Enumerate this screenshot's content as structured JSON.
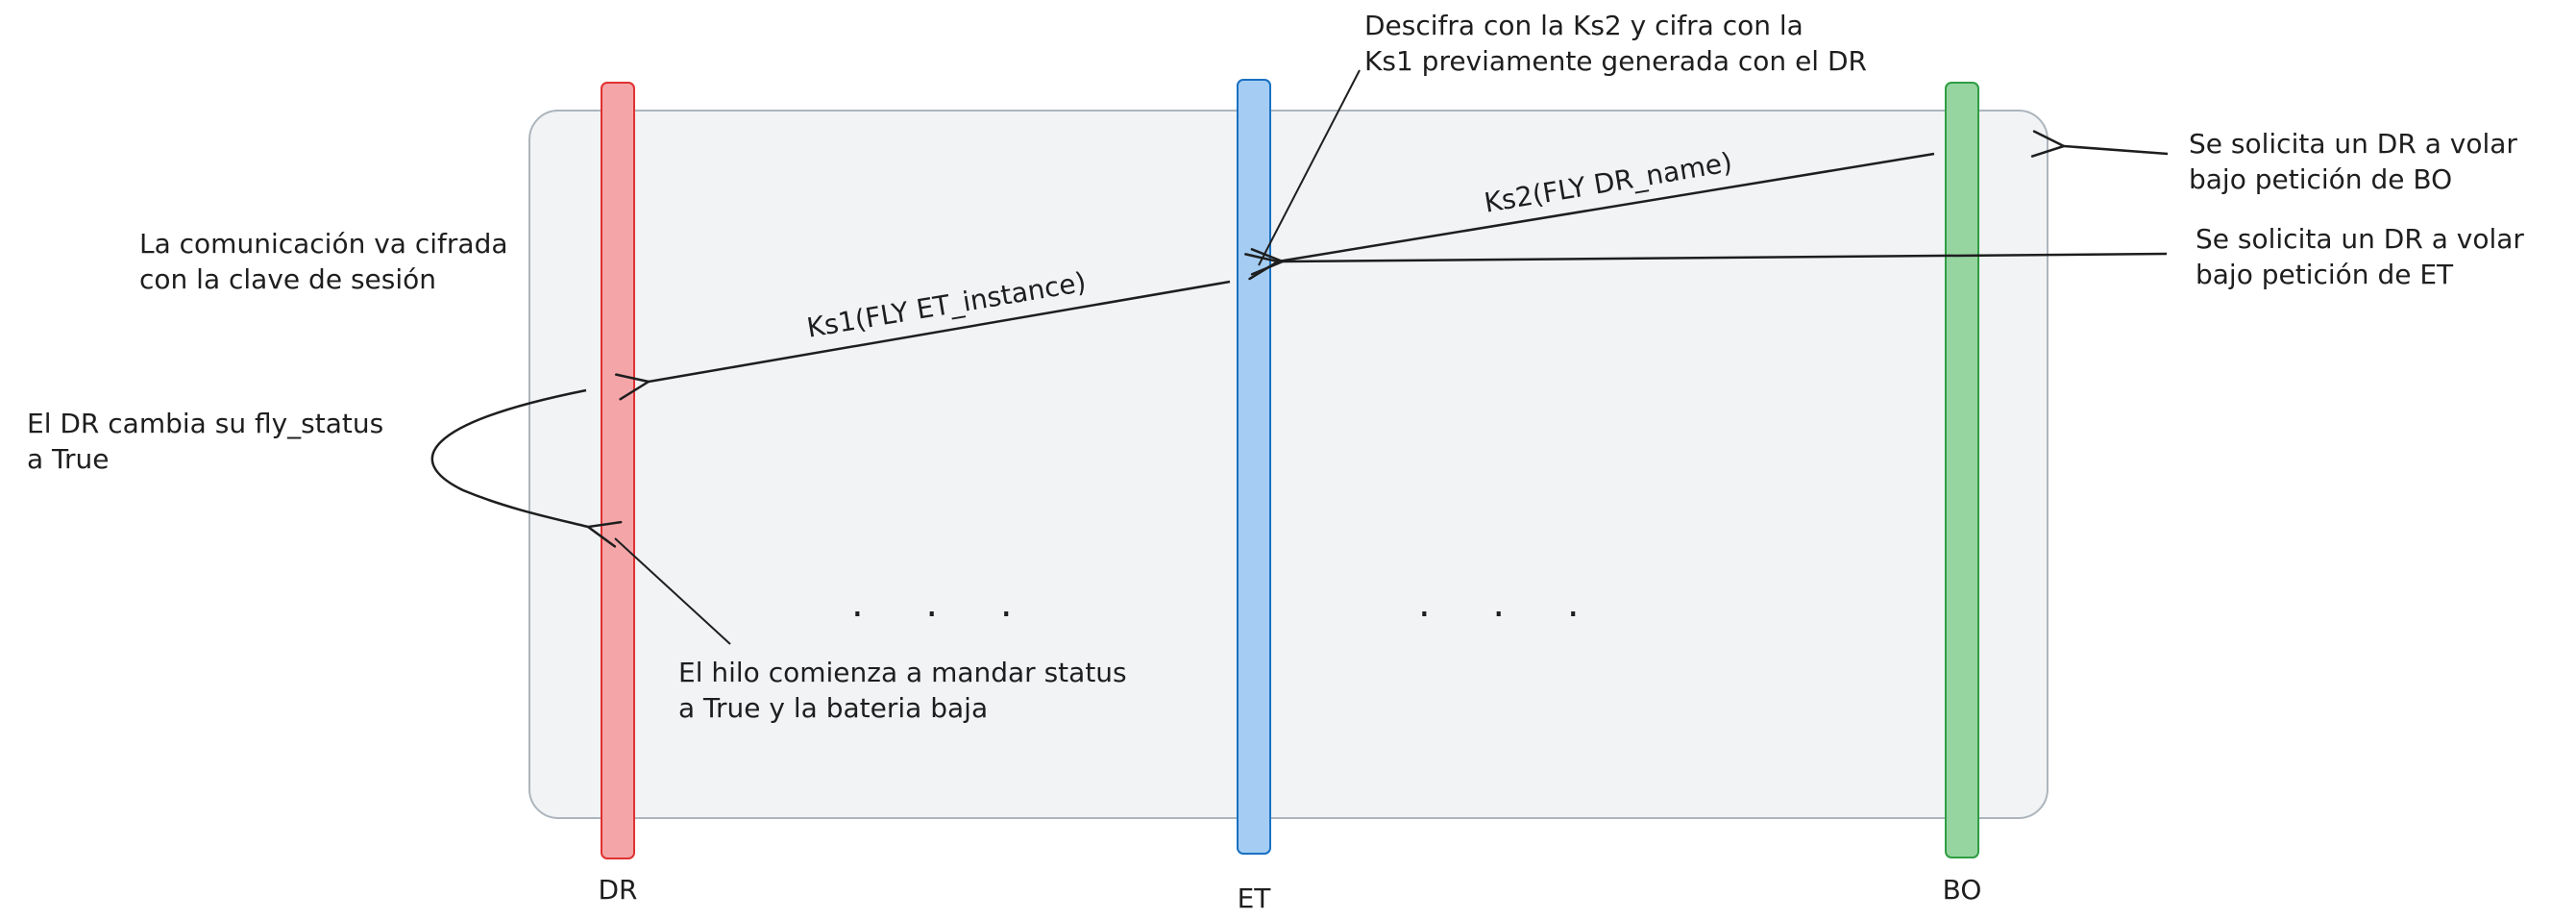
{
  "lanes": [
    {
      "id": "dr",
      "label": "DR",
      "color": "#f4a5a8",
      "stroke": "#e03131"
    },
    {
      "id": "et",
      "label": "ET",
      "color": "#a5cdf3",
      "stroke": "#1971c2"
    },
    {
      "id": "bo",
      "label": "BO",
      "color": "#96d5a0",
      "stroke": "#2f9e44"
    }
  ],
  "messages": {
    "ks2": "Ks2(FLY DR_name)",
    "ks1": "Ks1(FLY ET_instance)"
  },
  "notes": {
    "descifra": [
      "Descifra con la Ks2 y cifra con la",
      "Ks1 previamente generada con el DR"
    ],
    "bo_request": [
      "Se solicita un DR a volar",
      "bajo petición de BO"
    ],
    "et_request": [
      "Se solicita un DR a volar",
      "bajo petición de ET"
    ],
    "comunicacion": [
      "La comunicación va cifrada",
      "con la clave de sesión"
    ],
    "fly_status": [
      "El DR cambia su fly_status",
      "a True"
    ],
    "hilo": [
      "El hilo comienza a mandar status",
      "a True y la bateria baja"
    ]
  },
  "ellipsis": ". . .",
  "colors": {
    "frame_fill": "#f1f3f5",
    "frame_stroke": "#adb5bd",
    "ink": "#1e1e1e"
  }
}
